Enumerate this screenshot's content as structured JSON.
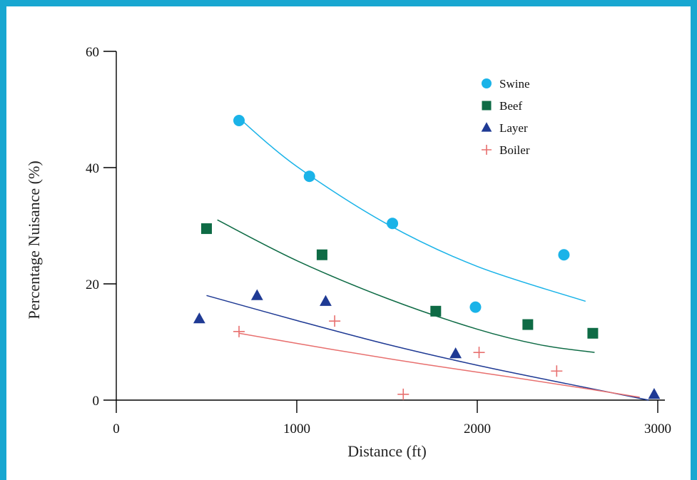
{
  "chart_data": {
    "type": "scatter",
    "title": "",
    "xlabel": "Distance (ft)",
    "ylabel": "Percentage Nuisance (%)",
    "xlim": [
      0,
      3000
    ],
    "ylim": [
      0,
      60
    ],
    "xticks": [
      0,
      1000,
      2000,
      3000
    ],
    "yticks": [
      0,
      20,
      40,
      60
    ],
    "grid": false,
    "legend_position": "top-right",
    "series": [
      {
        "name": "Swine",
        "marker": "circle",
        "color": "#1ab3e8",
        "points": [
          [
            680,
            48.1
          ],
          [
            1070,
            38.5
          ],
          [
            1530,
            30.4
          ],
          [
            1990,
            16.0
          ],
          [
            2480,
            25.0
          ]
        ],
        "trend": [
          [
            680,
            48.5
          ],
          [
            1000,
            40.2
          ],
          [
            1500,
            30.3
          ],
          [
            2000,
            23.0
          ],
          [
            2600,
            17.0
          ]
        ]
      },
      {
        "name": "Beef",
        "marker": "square",
        "color": "#0e6b45",
        "points": [
          [
            500,
            29.5
          ],
          [
            1140,
            25.0
          ],
          [
            1770,
            15.3
          ],
          [
            2280,
            13.0
          ],
          [
            2640,
            11.5
          ]
        ],
        "trend": [
          [
            560,
            31.0
          ],
          [
            1000,
            24.0
          ],
          [
            1500,
            17.5
          ],
          [
            2000,
            12.2
          ],
          [
            2350,
            9.5
          ],
          [
            2650,
            8.2
          ]
        ]
      },
      {
        "name": "Layer",
        "marker": "triangle",
        "color": "#1f3a94",
        "points": [
          [
            460,
            14.0
          ],
          [
            780,
            18.0
          ],
          [
            1160,
            17.0
          ],
          [
            1880,
            8.0
          ],
          [
            2980,
            1.0
          ]
        ],
        "trend": [
          [
            500,
            18.0
          ],
          [
            1000,
            13.7
          ],
          [
            1500,
            9.6
          ],
          [
            2000,
            6.0
          ],
          [
            2500,
            2.8
          ],
          [
            2950,
            0.0
          ]
        ]
      },
      {
        "name": "Boiler",
        "marker": "plus",
        "color": "#e8706f",
        "points": [
          [
            680,
            11.8
          ],
          [
            1210,
            13.6
          ],
          [
            1590,
            1.0
          ],
          [
            2010,
            8.2
          ],
          [
            2440,
            5.0
          ]
        ],
        "trend": [
          [
            680,
            11.5
          ],
          [
            1200,
            8.7
          ],
          [
            1700,
            6.2
          ],
          [
            2200,
            3.9
          ],
          [
            2600,
            2.0
          ],
          [
            2900,
            0.5
          ]
        ]
      }
    ]
  }
}
